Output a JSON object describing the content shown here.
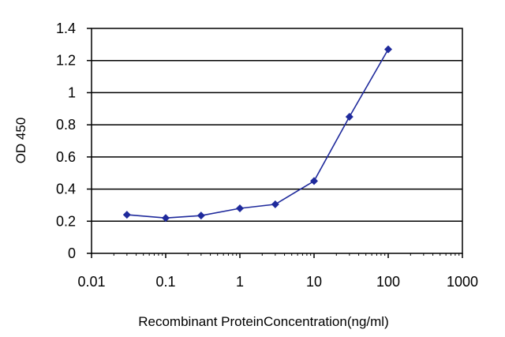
{
  "chart_data": {
    "type": "line",
    "title": "",
    "xlabel": "Recombinant ProteinConcentration(ng/ml)",
    "ylabel": "OD 450",
    "x_scale": "log",
    "xlim": [
      0.01,
      1000
    ],
    "ylim": [
      0,
      1.4
    ],
    "x_ticks": [
      "0.01",
      "0.1",
      "1",
      "10",
      "100",
      "1000"
    ],
    "y_ticks": [
      "0",
      "0.2",
      "0.4",
      "0.6",
      "0.8",
      "1",
      "1.2",
      "1.4"
    ],
    "grid": "horizontal",
    "legend": "none",
    "series": [
      {
        "color": "#1f2a9c",
        "x": [
          0.03,
          0.1,
          0.3,
          1,
          3,
          10,
          30,
          100
        ],
        "y": [
          0.24,
          0.22,
          0.235,
          0.28,
          0.305,
          0.45,
          0.85,
          1.27
        ]
      }
    ]
  }
}
